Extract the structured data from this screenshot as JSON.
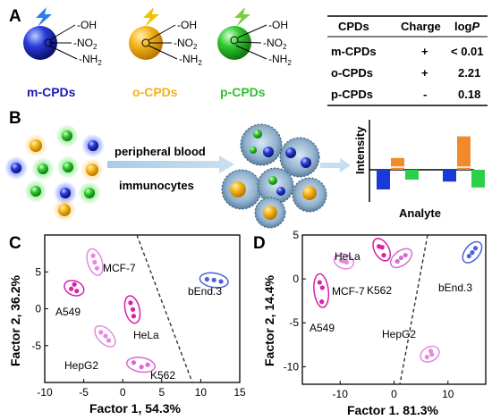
{
  "panel_labels": {
    "a": "A",
    "b": "B",
    "c": "C",
    "d": "D"
  },
  "panel_a": {
    "groups": [
      "-OH",
      "-NO",
      "-NH"
    ],
    "group_subs": [
      "",
      "2",
      "2"
    ],
    "cpds": [
      {
        "name": "m-CPDs",
        "color": "#1a1ab8"
      },
      {
        "name": "o-CPDs",
        "color": "#f2b21a"
      },
      {
        "name": "p-CPDs",
        "color": "#2fc02f"
      }
    ],
    "table": {
      "headers": [
        "CPDs",
        "Charge",
        "log",
        "P"
      ],
      "rows": [
        {
          "cpd": "m-CPDs",
          "charge": "+",
          "logp": "< 0.01"
        },
        {
          "cpd": "o-CPDs",
          "charge": "+",
          "logp": "2.21"
        },
        {
          "cpd": "p-CPDs",
          "charge": "-",
          "logp": "0.18"
        }
      ]
    }
  },
  "panel_b": {
    "arrow_text_1": "peripheral blood",
    "arrow_text_2": "immunocytes",
    "chart_ylabel": "Intensity",
    "chart_xlabel": "Analyte"
  },
  "chart_data": [
    {
      "type": "bar",
      "title": "",
      "xlabel": "Analyte",
      "ylabel": "Intensity",
      "categories": [
        "",
        ""
      ],
      "series": [
        {
          "color": "#1a3ad8",
          "values": [
            -1.0,
            -0.6
          ]
        },
        {
          "color": "#f08a2a",
          "values": [
            0.6,
            1.7
          ]
        },
        {
          "color": "#2ad04a",
          "values": [
            -0.5,
            -0.9
          ]
        }
      ]
    },
    {
      "type": "scatter",
      "xlabel": "Factor 1, 54.3%",
      "ylabel": "Factor 2, 36.2%",
      "xlim": [
        -10,
        15
      ],
      "ylim": [
        -10,
        10
      ],
      "xticks": [
        "-10",
        "-5",
        "0",
        "5",
        "10",
        "15"
      ],
      "yticks": [
        "5",
        "0",
        "-5"
      ],
      "clusters": [
        {
          "label": "A549",
          "color": "#d81fa8",
          "points": [
            [
              -6.6,
              2.7
            ],
            [
              -6.2,
              3.3
            ],
            [
              -5.9,
              2.4
            ]
          ]
        },
        {
          "label": "MCF-7",
          "color": "#e48ade",
          "points": [
            [
              -3.8,
              7.2
            ],
            [
              -3.6,
              6.3
            ],
            [
              -3.3,
              5.5
            ]
          ]
        },
        {
          "label": "HeLa",
          "color": "#d81fa8",
          "points": [
            [
              1.0,
              0.8
            ],
            [
              1.3,
              -0.1
            ],
            [
              1.4,
              -1.0
            ]
          ]
        },
        {
          "label": "HepG2",
          "color": "#e48ade",
          "points": [
            [
              -2.8,
              -3.2
            ],
            [
              -2.2,
              -3.7
            ],
            [
              -1.8,
              -4.3
            ]
          ]
        },
        {
          "label": "K562",
          "color": "#d86ad6",
          "points": [
            [
              1.4,
              -7.3
            ],
            [
              2.4,
              -7.9
            ],
            [
              3.2,
              -7.6
            ]
          ]
        },
        {
          "label": "bEnd.3",
          "color": "#4a62d8",
          "points": [
            [
              10.8,
              4.0
            ],
            [
              11.7,
              3.9
            ],
            [
              12.6,
              3.7
            ]
          ]
        }
      ]
    },
    {
      "type": "scatter",
      "xlabel": "Factor 1. 81.3%",
      "ylabel": "Factor 2, 14.4%",
      "xlim": [
        -17,
        17
      ],
      "ylim": [
        -12,
        5
      ],
      "xticks": [
        "-10",
        "0",
        "10"
      ],
      "yticks": [
        "5",
        "0",
        "-5",
        "-10"
      ],
      "clusters": [
        {
          "label": "A549",
          "color": "#d81fa8",
          "points": [
            [
              -13.8,
              -0.4
            ],
            [
              -13.3,
              -1.0
            ],
            [
              -13.4,
              -2.6
            ]
          ]
        },
        {
          "label": "MCF-7",
          "color": "#e48ade",
          "points": [
            [
              -9.8,
              2.1
            ],
            [
              -9.3,
              2.0
            ],
            [
              -8.8,
              1.9
            ]
          ]
        },
        {
          "label": "HeLa",
          "color": "#d81fa8",
          "points": [
            [
              -2.8,
              3.7
            ],
            [
              -2.2,
              3.6
            ],
            [
              -1.9,
              2.7
            ]
          ]
        },
        {
          "label": "K562",
          "color": "#d86ad6",
          "points": [
            [
              0.6,
              2.0
            ],
            [
              1.3,
              2.4
            ],
            [
              2.1,
              2.7
            ]
          ]
        },
        {
          "label": "HepG2",
          "color": "#e48ade",
          "points": [
            [
              6.1,
              -8.9
            ],
            [
              6.8,
              -8.2
            ],
            [
              7.0,
              -8.6
            ]
          ]
        },
        {
          "label": "bEnd.3",
          "color": "#4a62d8",
          "points": [
            [
              13.9,
              2.6
            ],
            [
              14.5,
              3.0
            ],
            [
              15.1,
              3.5
            ]
          ]
        }
      ]
    }
  ]
}
